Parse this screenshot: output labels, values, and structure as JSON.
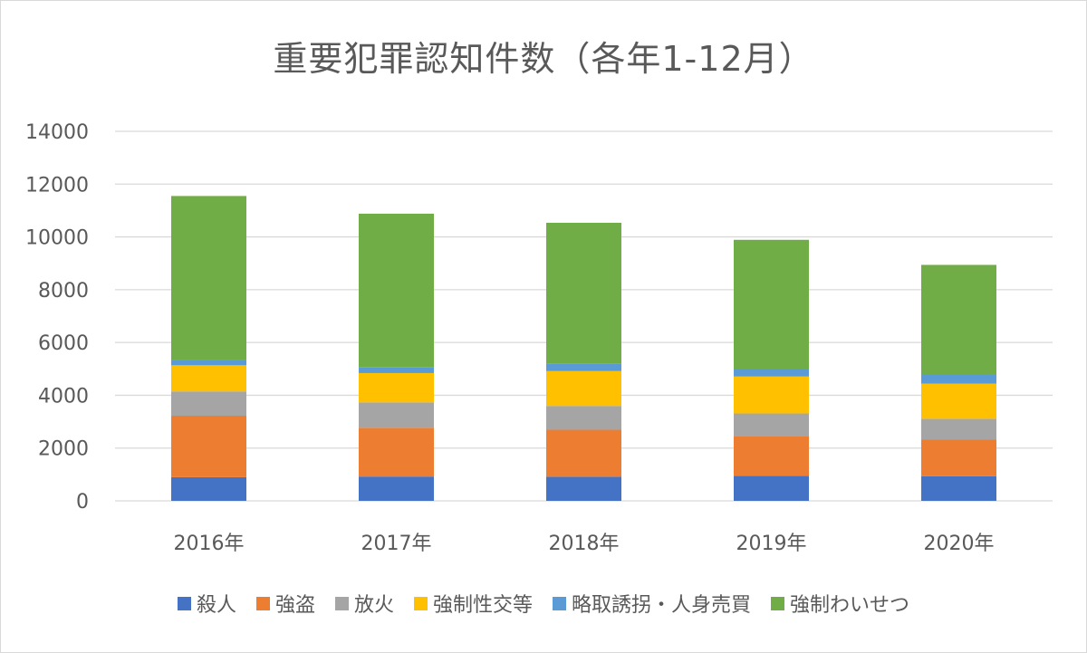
{
  "chart_data": {
    "type": "bar",
    "stacked": true,
    "title": "重要犯罪認知件数（各年1-12月）",
    "categories": [
      "2016年",
      "2017年",
      "2018年",
      "2019年",
      "2020年"
    ],
    "series": [
      {
        "name": "殺人",
        "color": "#4472c4",
        "values": [
          895,
          920,
          915,
          950,
          930
        ]
      },
      {
        "name": "強盗",
        "color": "#ed7d31",
        "values": [
          2330,
          1850,
          1780,
          1510,
          1400
        ]
      },
      {
        "name": "放火",
        "color": "#a5a5a5",
        "values": [
          920,
          960,
          900,
          850,
          780
        ]
      },
      {
        "name": "強制性交等",
        "color": "#ffc000",
        "values": [
          990,
          1110,
          1320,
          1400,
          1330
        ]
      },
      {
        "name": "略取誘拐・人身売買",
        "color": "#5b9bd5",
        "values": [
          215,
          230,
          290,
          300,
          330
        ]
      },
      {
        "name": "強制わいせつ",
        "color": "#70ad47",
        "values": [
          6200,
          5810,
          5330,
          4880,
          4170
        ]
      }
    ],
    "ylim": [
      0,
      14000
    ],
    "yticks": [
      0,
      2000,
      4000,
      6000,
      8000,
      10000,
      12000,
      14000
    ],
    "grid": true,
    "legend_position": "bottom"
  }
}
